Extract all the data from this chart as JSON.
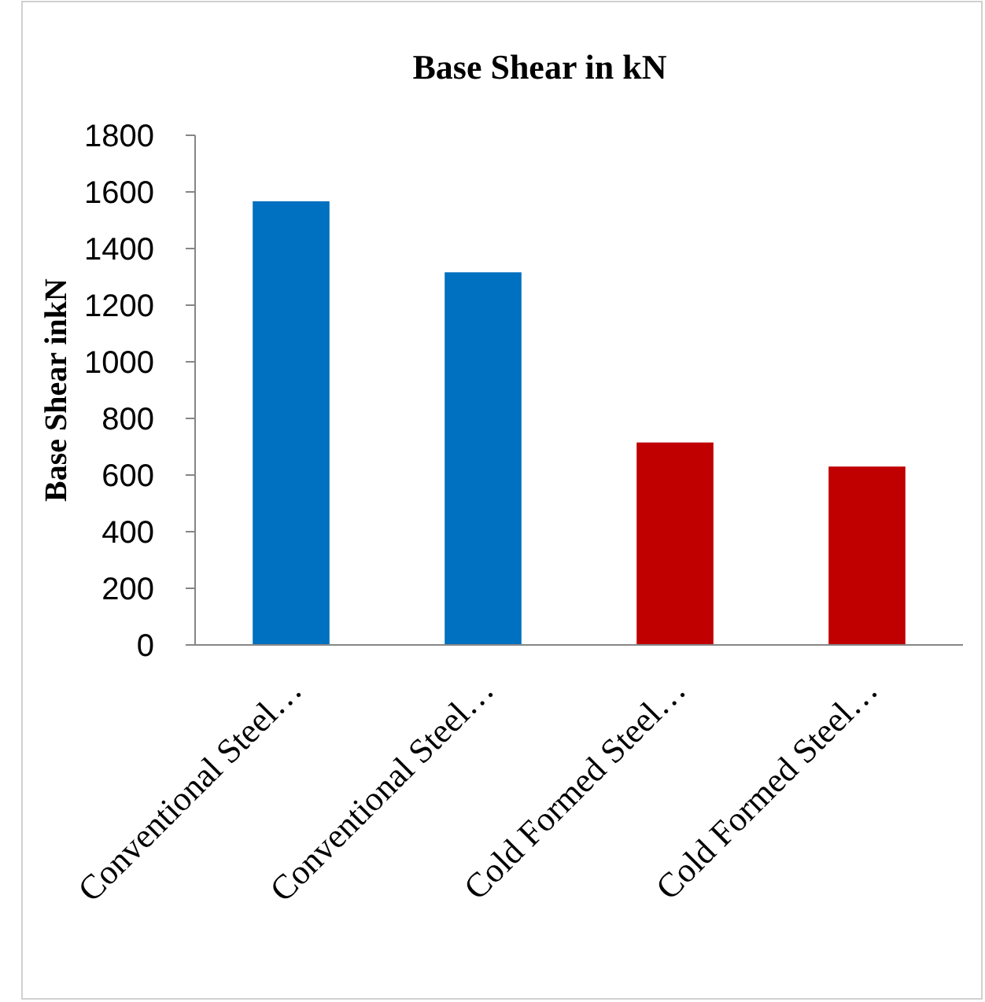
{
  "chart_data": {
    "type": "bar",
    "title": "Base Shear in kN",
    "ylabel": "Base Shear inkN",
    "categories": [
      "Conventional Steel…",
      "Conventional Steel…",
      "Cold Formed Steel…",
      "Cold Formed Steel…"
    ],
    "values": [
      1567,
      1316,
      715,
      630
    ],
    "colors": [
      "#0070c0",
      "#0070c0",
      "#c00000",
      "#c00000"
    ],
    "ylim": [
      0,
      1800
    ],
    "yticks": [
      0,
      200,
      400,
      600,
      800,
      1000,
      1200,
      1400,
      1600,
      1800
    ],
    "grid": false
  }
}
